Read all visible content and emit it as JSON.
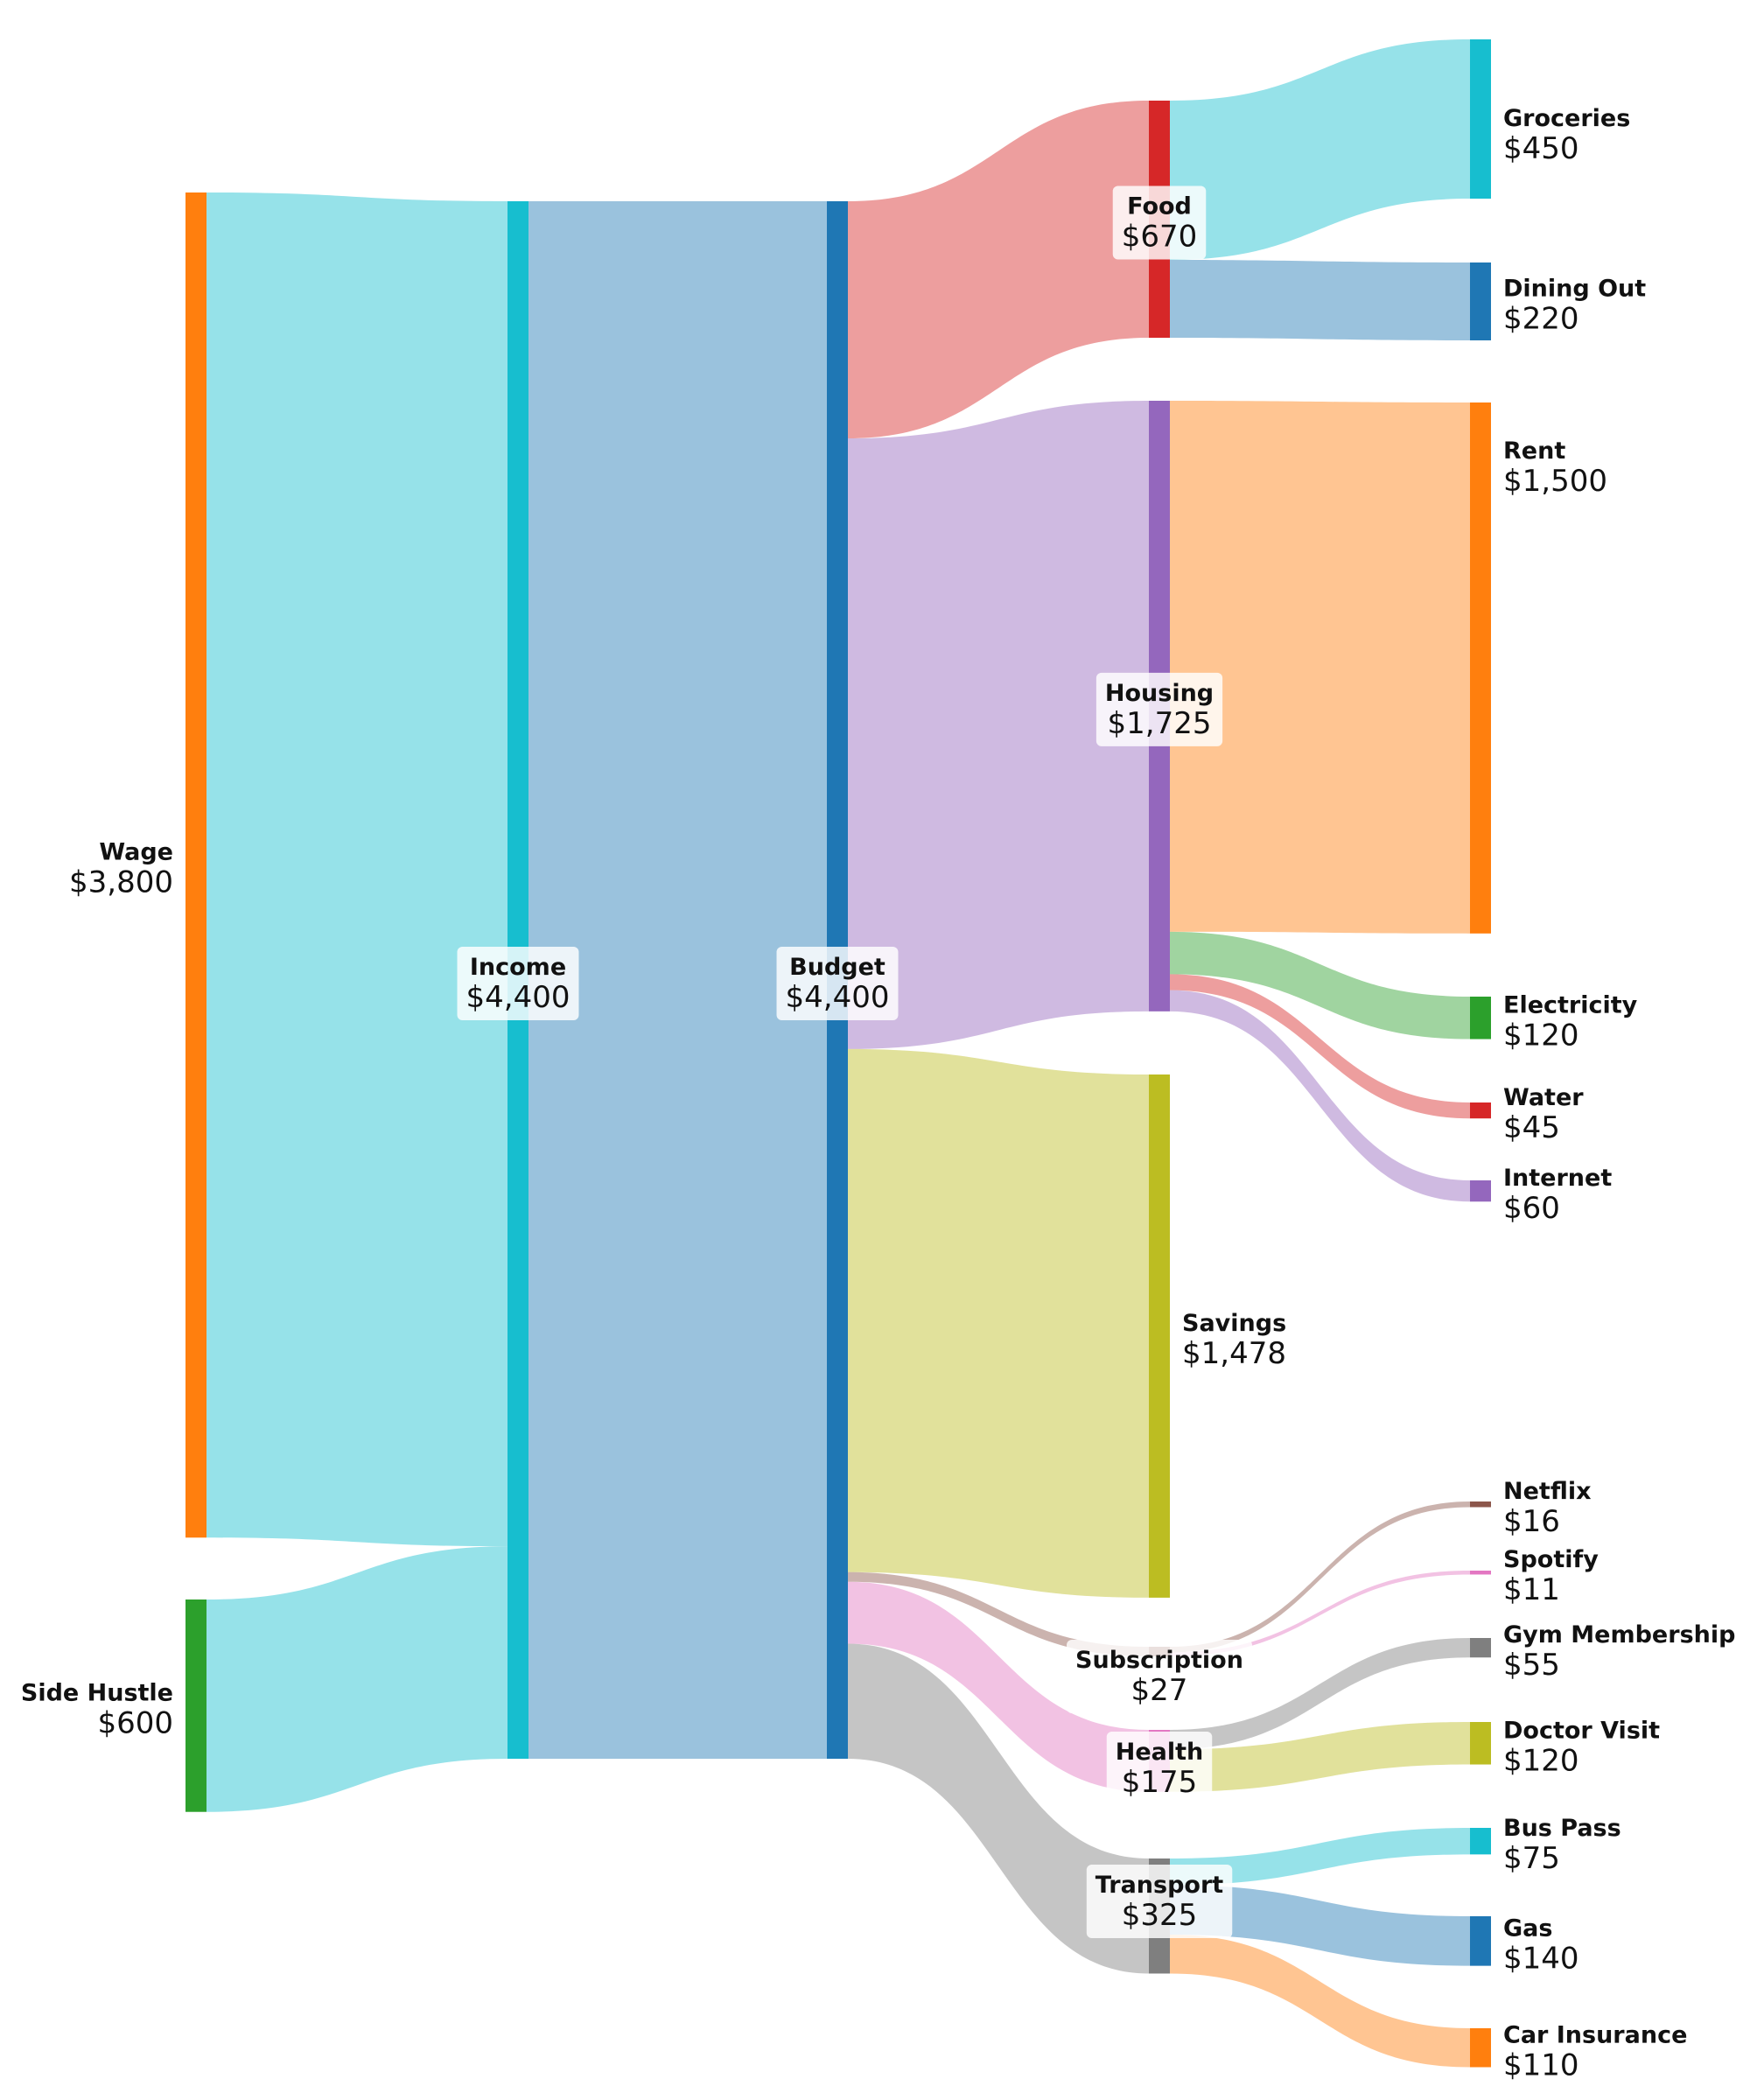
{
  "chart_data": {
    "type": "sankey",
    "title": "",
    "colors": {
      "orange": "#ff7f0e",
      "green": "#2ca02c",
      "cyan": "#17becf",
      "blue": "#1f77b4",
      "red": "#d62728",
      "purple": "#9467bd",
      "olive": "#bcbd22",
      "brown": "#8c564b",
      "pink": "#e377c2",
      "gray": "#7f7f7f"
    },
    "nodes": [
      {
        "id": "wage",
        "name": "Wage",
        "value_label": "$3,800",
        "value": 3800,
        "color": "orange"
      },
      {
        "id": "side_hustle",
        "name": "Side Hustle",
        "value_label": "$600",
        "value": 600,
        "color": "green"
      },
      {
        "id": "income",
        "name": "Income",
        "value_label": "$4,400",
        "value": 4400,
        "color": "cyan"
      },
      {
        "id": "budget",
        "name": "Budget",
        "value_label": "$4,400",
        "value": 4400,
        "color": "blue"
      },
      {
        "id": "food",
        "name": "Food",
        "value_label": "$670",
        "value": 670,
        "color": "red"
      },
      {
        "id": "housing",
        "name": "Housing",
        "value_label": "$1,725",
        "value": 1725,
        "color": "purple"
      },
      {
        "id": "savings",
        "name": "Savings",
        "value_label": "$1,478",
        "value": 1478,
        "color": "olive"
      },
      {
        "id": "subscription",
        "name": "Subscription",
        "value_label": "$27",
        "value": 27,
        "color": "brown"
      },
      {
        "id": "health",
        "name": "Health",
        "value_label": "$175",
        "value": 175,
        "color": "pink"
      },
      {
        "id": "transport",
        "name": "Transport",
        "value_label": "$325",
        "value": 325,
        "color": "gray"
      },
      {
        "id": "groceries",
        "name": "Groceries",
        "value_label": "$450",
        "value": 450,
        "color": "cyan"
      },
      {
        "id": "dining_out",
        "name": "Dining Out",
        "value_label": "$220",
        "value": 220,
        "color": "blue"
      },
      {
        "id": "rent",
        "name": "Rent",
        "value_label": "$1,500",
        "value": 1500,
        "color": "orange"
      },
      {
        "id": "electricity",
        "name": "Electricity",
        "value_label": "$120",
        "value": 120,
        "color": "green"
      },
      {
        "id": "water",
        "name": "Water",
        "value_label": "$45",
        "value": 45,
        "color": "red"
      },
      {
        "id": "internet",
        "name": "Internet",
        "value_label": "$60",
        "value": 60,
        "color": "purple"
      },
      {
        "id": "netflix",
        "name": "Netflix",
        "value_label": "$16",
        "value": 16,
        "color": "brown"
      },
      {
        "id": "spotify",
        "name": "Spotify",
        "value_label": "$11",
        "value": 11,
        "color": "pink"
      },
      {
        "id": "gym_membership",
        "name": "Gym Membership",
        "value_label": "$55",
        "value": 55,
        "color": "gray"
      },
      {
        "id": "doctor_visit",
        "name": "Doctor Visit",
        "value_label": "$120",
        "value": 120,
        "color": "olive"
      },
      {
        "id": "bus_pass",
        "name": "Bus Pass",
        "value_label": "$75",
        "value": 75,
        "color": "cyan"
      },
      {
        "id": "gas",
        "name": "Gas",
        "value_label": "$140",
        "value": 140,
        "color": "blue"
      },
      {
        "id": "car_insurance",
        "name": "Car Insurance",
        "value_label": "$110",
        "value": 110,
        "color": "orange"
      }
    ],
    "links": [
      {
        "source": "wage",
        "target": "income",
        "value": 3800
      },
      {
        "source": "side_hustle",
        "target": "income",
        "value": 600
      },
      {
        "source": "income",
        "target": "budget",
        "value": 4400
      },
      {
        "source": "budget",
        "target": "food",
        "value": 670
      },
      {
        "source": "budget",
        "target": "housing",
        "value": 1725
      },
      {
        "source": "budget",
        "target": "savings",
        "value": 1478
      },
      {
        "source": "budget",
        "target": "subscription",
        "value": 27
      },
      {
        "source": "budget",
        "target": "health",
        "value": 175
      },
      {
        "source": "budget",
        "target": "transport",
        "value": 325
      },
      {
        "source": "food",
        "target": "groceries",
        "value": 450
      },
      {
        "source": "food",
        "target": "dining_out",
        "value": 220
      },
      {
        "source": "housing",
        "target": "rent",
        "value": 1500
      },
      {
        "source": "housing",
        "target": "electricity",
        "value": 120
      },
      {
        "source": "housing",
        "target": "water",
        "value": 45
      },
      {
        "source": "housing",
        "target": "internet",
        "value": 60
      },
      {
        "source": "subscription",
        "target": "netflix",
        "value": 16
      },
      {
        "source": "subscription",
        "target": "spotify",
        "value": 11
      },
      {
        "source": "health",
        "target": "gym_membership",
        "value": 55
      },
      {
        "source": "health",
        "target": "doctor_visit",
        "value": 120
      },
      {
        "source": "transport",
        "target": "bus_pass",
        "value": 75
      },
      {
        "source": "transport",
        "target": "gas",
        "value": 140
      },
      {
        "source": "transport",
        "target": "car_insurance",
        "value": 110
      }
    ]
  }
}
